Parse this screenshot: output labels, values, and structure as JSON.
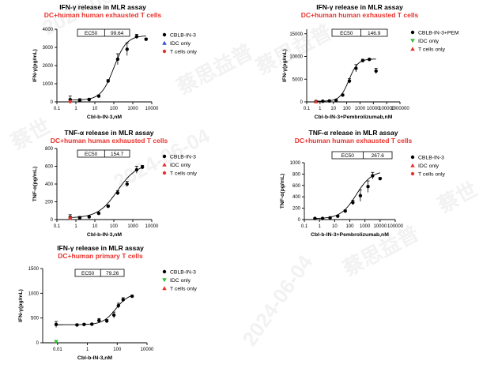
{
  "watermarks": [
    "2024-06-04",
    "蔡思益普",
    "蔡世",
    "2024-06-04",
    "蔡世",
    "蔡思益普",
    "2024-06-04",
    "蔡思益普"
  ],
  "chart_data": [
    {
      "type": "scatter",
      "title": "IFN-γ release in MLR assay",
      "subtitle": "DC+human human exhausted T cells",
      "xlabel": "Cbl-b-IN-3,nM",
      "ylabel": "IFN-γ(pg/mL)",
      "xscale": "log",
      "xlim": [
        0.1,
        10000
      ],
      "ylim": [
        0,
        4000
      ],
      "xticks": [
        "0.1",
        "1",
        "10",
        "100",
        "1000",
        "10000"
      ],
      "yticks": [
        "0",
        "1000",
        "2000",
        "3000",
        "4000"
      ],
      "ec50": {
        "label": "EC50",
        "value": "99.64"
      },
      "legend_position": "top-right",
      "series": [
        {
          "name": "CBLB-IN-3",
          "color": "#000000",
          "marker": "circle",
          "x": [
            0.5,
            1.6,
            5,
            16,
            50,
            160,
            500,
            1600,
            5000
          ],
          "y": [
            120,
            80,
            130,
            320,
            1150,
            2350,
            2900,
            3600,
            3450
          ],
          "err": [
            200,
            100,
            60,
            60,
            80,
            300,
            350,
            120,
            60
          ],
          "fit": {
            "bottom": 100,
            "top": 3650,
            "ec50": 99.64,
            "hill": 1.3
          }
        },
        {
          "name": "IDC only",
          "color": "#2b4fd8",
          "marker": "triangle-up",
          "x": [],
          "y": []
        },
        {
          "name": "T cells only",
          "color": "#e8322c",
          "marker": "circle",
          "x": [
            0.5
          ],
          "y": [
            20
          ]
        }
      ]
    },
    {
      "type": "scatter",
      "title": "IFN-γ release in MLR assay",
      "subtitle": "DC+human human exhausted T cells",
      "xlabel": "Cbl-b-IN-3+Pembrolizumab,nM",
      "ylabel": "IFN-γ(pg/mL)",
      "xscale": "log",
      "xlim": [
        0.1,
        1000000
      ],
      "ylim": [
        0,
        16000
      ],
      "xticks": [
        "0.1",
        "1",
        "10",
        "100",
        "1000",
        "10000",
        "100000",
        "1000000"
      ],
      "yticks": [
        "0",
        "5000",
        "10000",
        "15000"
      ],
      "ec50": {
        "label": "EC50",
        "value": "146.9"
      },
      "legend_position": "top-right",
      "series": [
        {
          "name": "CBLB-IN-3+PEM",
          "color": "#000000",
          "marker": "circle",
          "x": [
            0.5,
            1.6,
            5,
            16,
            50,
            160,
            500,
            1600,
            5000,
            16000
          ],
          "y": [
            100,
            150,
            200,
            350,
            1500,
            4600,
            7400,
            9100,
            9350,
            6800
          ],
          "err": [
            80,
            60,
            60,
            100,
            200,
            500,
            800,
            300,
            200,
            600
          ],
          "fit": {
            "bottom": 150,
            "top": 9450,
            "ec50": 146.9,
            "hill": 1.3
          }
        },
        {
          "name": "IDC only",
          "color": "#2fbf2f",
          "marker": "triangle-down",
          "x": [],
          "y": []
        },
        {
          "name": "T cells only",
          "color": "#e8322c",
          "marker": "triangle-up",
          "x": [
            0.5
          ],
          "y": [
            80
          ]
        }
      ]
    },
    {
      "type": "scatter",
      "title": "TNF-α release in MLR assay",
      "subtitle": "DC+human human exhausted T cells",
      "xlabel": "Cbl-b-IN-3,nM",
      "ylabel": "TNF-α(pg/mL)",
      "xscale": "log",
      "xlim": [
        0.1,
        10000
      ],
      "ylim": [
        0,
        800
      ],
      "xticks": [
        "0.1",
        "1",
        "10",
        "100",
        "1000",
        "10000"
      ],
      "yticks": [
        "0",
        "200",
        "400",
        "600",
        "800"
      ],
      "ec50": {
        "label": "EC50",
        "value": "154.7"
      },
      "legend_position": "top-right",
      "series": [
        {
          "name": "CBLB-IN-3",
          "color": "#000000",
          "marker": "circle",
          "x": [
            0.5,
            1.6,
            5,
            16,
            50,
            160,
            500,
            1600,
            3200
          ],
          "y": [
            25,
            20,
            30,
            70,
            150,
            300,
            400,
            560,
            590
          ],
          "err": [
            30,
            15,
            10,
            10,
            15,
            25,
            30,
            40,
            20
          ],
          "fit": {
            "bottom": 18,
            "top": 630,
            "ec50": 154.7,
            "hill": 0.85
          }
        },
        {
          "name": "IDC only",
          "color": "#e8322c",
          "marker": "triangle-up",
          "x": [],
          "y": []
        },
        {
          "name": "T cells only",
          "color": "#e8322c",
          "marker": "circle",
          "x": [
            0.5
          ],
          "y": [
            15
          ]
        }
      ]
    },
    {
      "type": "scatter",
      "title": "TNF-α release in MLR assay",
      "subtitle": "DC+human human exhausted T cells",
      "xlabel": "Cbl-b-IN-3+Pembrolizumab,nM",
      "ylabel": "TNF-α(pg/mL)",
      "xscale": "log",
      "xlim": [
        0.1,
        100000
      ],
      "ylim": [
        0,
        1000
      ],
      "xticks": [
        "0.1",
        "1",
        "10",
        "100",
        "1000",
        "10000",
        "100000"
      ],
      "yticks": [
        "0",
        "200",
        "400",
        "600",
        "800",
        "1000"
      ],
      "ec50": {
        "label": "EC50",
        "value": "267.6"
      },
      "legend_position": "top-right",
      "series": [
        {
          "name": "CBLB-IN-3",
          "color": "#000000",
          "marker": "circle",
          "x": [
            0.5,
            1.6,
            5,
            16,
            50,
            160,
            500,
            1600,
            3200,
            10000
          ],
          "y": [
            20,
            20,
            30,
            60,
            150,
            300,
            420,
            580,
            770,
            720
          ],
          "err": [
            10,
            10,
            10,
            15,
            20,
            40,
            100,
            100,
            60,
            20
          ],
          "fit": {
            "bottom": 15,
            "top": 860,
            "ec50": 267.6,
            "hill": 0.85
          }
        },
        {
          "name": "IDC only",
          "color": "#e8322c",
          "marker": "triangle-up",
          "x": [],
          "y": []
        },
        {
          "name": "T cells only",
          "color": "#e8322c",
          "marker": "circle",
          "x": [],
          "y": []
        }
      ]
    },
    {
      "type": "scatter",
      "title": "IFN-γ release in MLR assay",
      "subtitle": "DC+human primary T cells",
      "xlabel": "Cbl-b-IN-3,nM",
      "ylabel": "IFN-γ(pg/mL)",
      "xscale": "log",
      "xlim": [
        0.001,
        10000
      ],
      "ylim": [
        0,
        1500
      ],
      "xticks": [
        "0.01",
        "1",
        "100",
        "10000"
      ],
      "yticks": [
        "0",
        "500",
        "1000",
        "1500"
      ],
      "ec50": {
        "label": "EC50",
        "value": "79.26"
      },
      "legend_position": "top-right",
      "series": [
        {
          "name": "CBLB-IN-3",
          "color": "#000000",
          "marker": "circle",
          "x": [
            0.008,
            0.2,
            0.6,
            2,
            6,
            20,
            60,
            120,
            250,
            1000
          ],
          "y": [
            370,
            360,
            370,
            375,
            450,
            440,
            560,
            750,
            870,
            940
          ],
          "err": [
            60,
            20,
            20,
            20,
            40,
            30,
            60,
            50,
            40,
            20
          ],
          "fit": {
            "bottom": 365,
            "top": 1000,
            "ec50": 79.26,
            "hill": 1.0
          }
        },
        {
          "name": "IDC only",
          "color": "#2fbf2f",
          "marker": "triangle-down",
          "x": [
            0.008
          ],
          "y": [
            20
          ]
        },
        {
          "name": "T cells only",
          "color": "#e8322c",
          "marker": "triangle-up",
          "x": [],
          "y": []
        }
      ]
    }
  ]
}
